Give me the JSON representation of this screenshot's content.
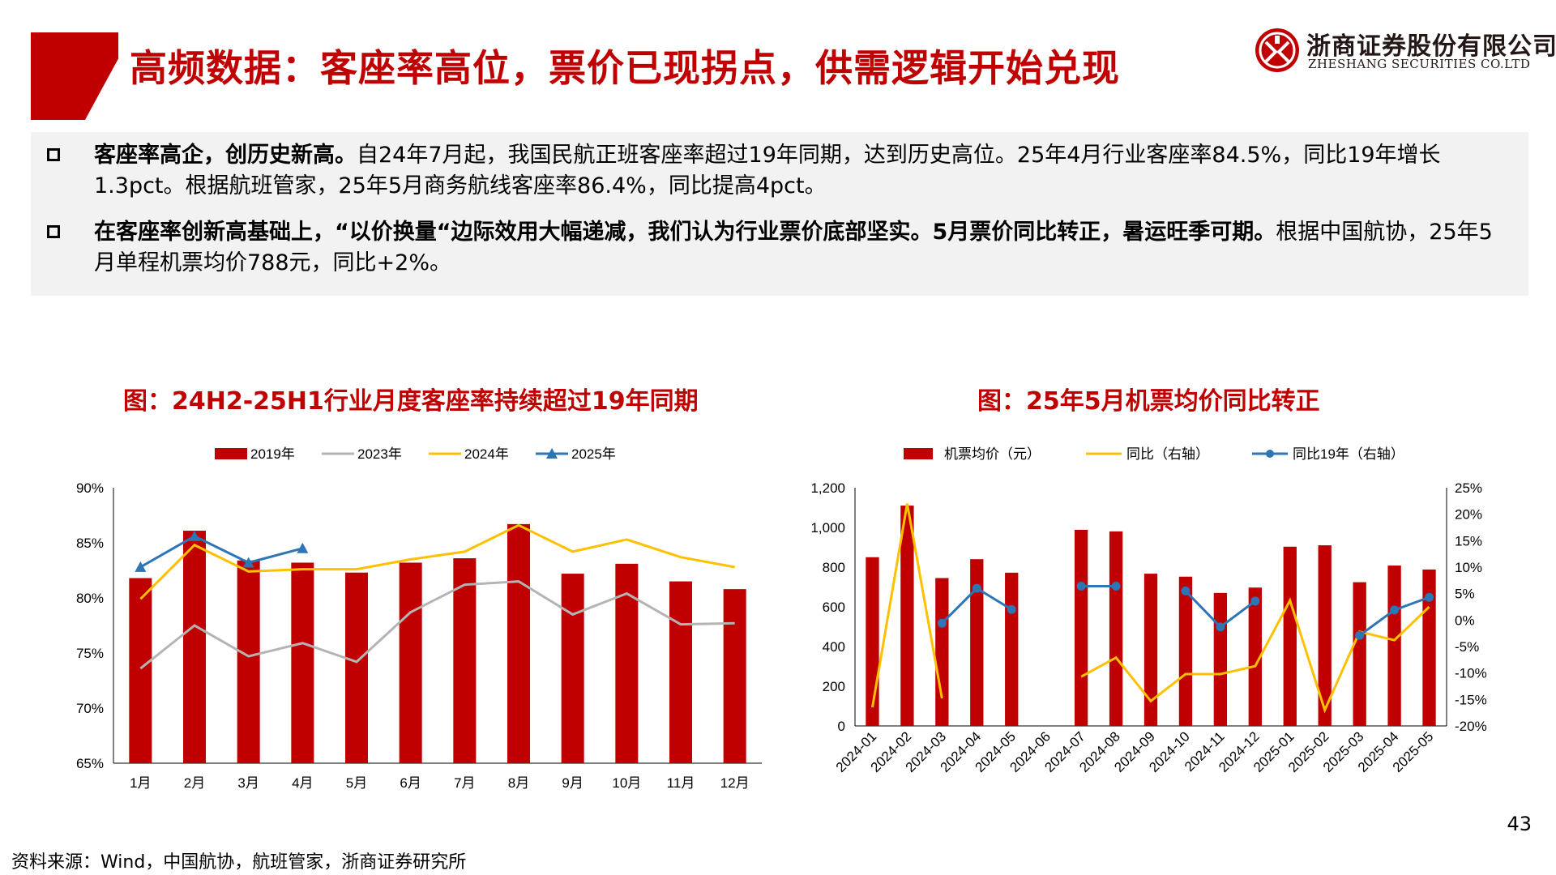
{
  "header": {
    "title": "高频数据：客座率高位，票价已现拐点，供需逻辑开始兑现",
    "logo_cn": "浙商证券股份有限公司",
    "logo_en": "ZHESHANG SECURITIES CO.LTD"
  },
  "summary": {
    "bullet1_bold": "客座率高企，创历史新高。",
    "bullet1_text": "自24年7月起，我国民航正班客座率超过19年同期，达到历史高位。25年4月行业客座率84.5%，同比19年增长1.3pct。根据航班管家，25年5月商务航线客座率86.4%，同比提高4pct。",
    "bullet2_bold": "在客座率创新高基础上，“以价换量“边际效用大幅递减，我们认为行业票价底部坚实。5月票价同比转正，暑运旺季可期。",
    "bullet2_text": "根据中国航协，25年5月单程机票均价788元，同比+2%。"
  },
  "chart_data": [
    {
      "type": "bar",
      "title": "图：24H2-25H1行业月度客座率持续超过19年同期",
      "categories": [
        "1月",
        "2月",
        "3月",
        "4月",
        "5月",
        "6月",
        "7月",
        "8月",
        "9月",
        "10月",
        "11月",
        "12月"
      ],
      "ylim": [
        65,
        90
      ],
      "yticks": [
        "65%",
        "70%",
        "75%",
        "80%",
        "85%",
        "90%"
      ],
      "legend_position": "top",
      "series": [
        {
          "name": "2019年",
          "type": "bar",
          "color": "#c00000",
          "values": [
            81.8,
            86.1,
            83.4,
            83.2,
            82.3,
            83.2,
            83.6,
            86.7,
            82.2,
            83.1,
            81.5,
            80.8
          ]
        },
        {
          "name": "2023年",
          "type": "line",
          "color": "#b4b4b4",
          "values": [
            73.6,
            77.5,
            74.7,
            75.9,
            74.2,
            78.7,
            81.2,
            81.5,
            78.5,
            80.4,
            77.6,
            77.7
          ]
        },
        {
          "name": "2024年",
          "type": "line",
          "color": "#ffc000",
          "values": [
            79.9,
            84.8,
            82.4,
            82.6,
            82.6,
            83.5,
            84.2,
            86.6,
            84.2,
            85.3,
            83.7,
            82.8
          ]
        },
        {
          "name": "2025年",
          "type": "line",
          "color": "#2e75b6",
          "values": [
            82.8,
            85.6,
            83.2,
            84.5,
            null,
            null,
            null,
            null,
            null,
            null,
            null,
            null
          ]
        }
      ]
    },
    {
      "type": "bar",
      "title": "图：25年5月机票均价同比转正",
      "categories": [
        "2024-01",
        "2024-02",
        "2024-03",
        "2024-04",
        "2024-05",
        "2024-06",
        "2024-07",
        "2024-08",
        "2024-09",
        "2024-10",
        "2024-11",
        "2024-12",
        "2025-01",
        "2025-02",
        "2025-03",
        "2025-04",
        "2025-05"
      ],
      "ylim": [
        0,
        1200
      ],
      "yticks": [
        "0",
        "200",
        "400",
        "600",
        "800",
        "1,000",
        "1,200"
      ],
      "y2lim": [
        -20,
        25
      ],
      "y2ticks": [
        "-20%",
        "-15%",
        "-10%",
        "-5%",
        "0%",
        "5%",
        "10%",
        "15%",
        "20%",
        "25%"
      ],
      "legend_position": "top",
      "series": [
        {
          "name": "机票均价（元）",
          "type": "bar",
          "axis": "left",
          "color": "#c00000",
          "values": [
            850,
            1110,
            745,
            840,
            772,
            null,
            988,
            980,
            767,
            752,
            670,
            697,
            903,
            910,
            724,
            808,
            788
          ]
        },
        {
          "name": "同比（右轴）",
          "type": "line",
          "axis": "right",
          "color": "#ffc000",
          "values": [
            -16.5,
            22.0,
            -14.8,
            null,
            null,
            null,
            -10.7,
            -7.1,
            -15.3,
            -10.2,
            -10.2,
            -8.7,
            3.7,
            -17.0,
            -2.2,
            -3.8,
            2.5
          ]
        },
        {
          "name": "同比19年（右轴）",
          "type": "line",
          "axis": "right",
          "color": "#2e75b6",
          "values": [
            null,
            null,
            -0.6,
            6.0,
            2.0,
            null,
            6.4,
            6.4,
            null,
            5.5,
            -1.3,
            3.6,
            null,
            null,
            -2.9,
            1.9,
            4.3
          ]
        }
      ]
    }
  ],
  "page_number": "43",
  "source": "资料来源：Wind，中国航协，航班管家，浙商证券研究所"
}
